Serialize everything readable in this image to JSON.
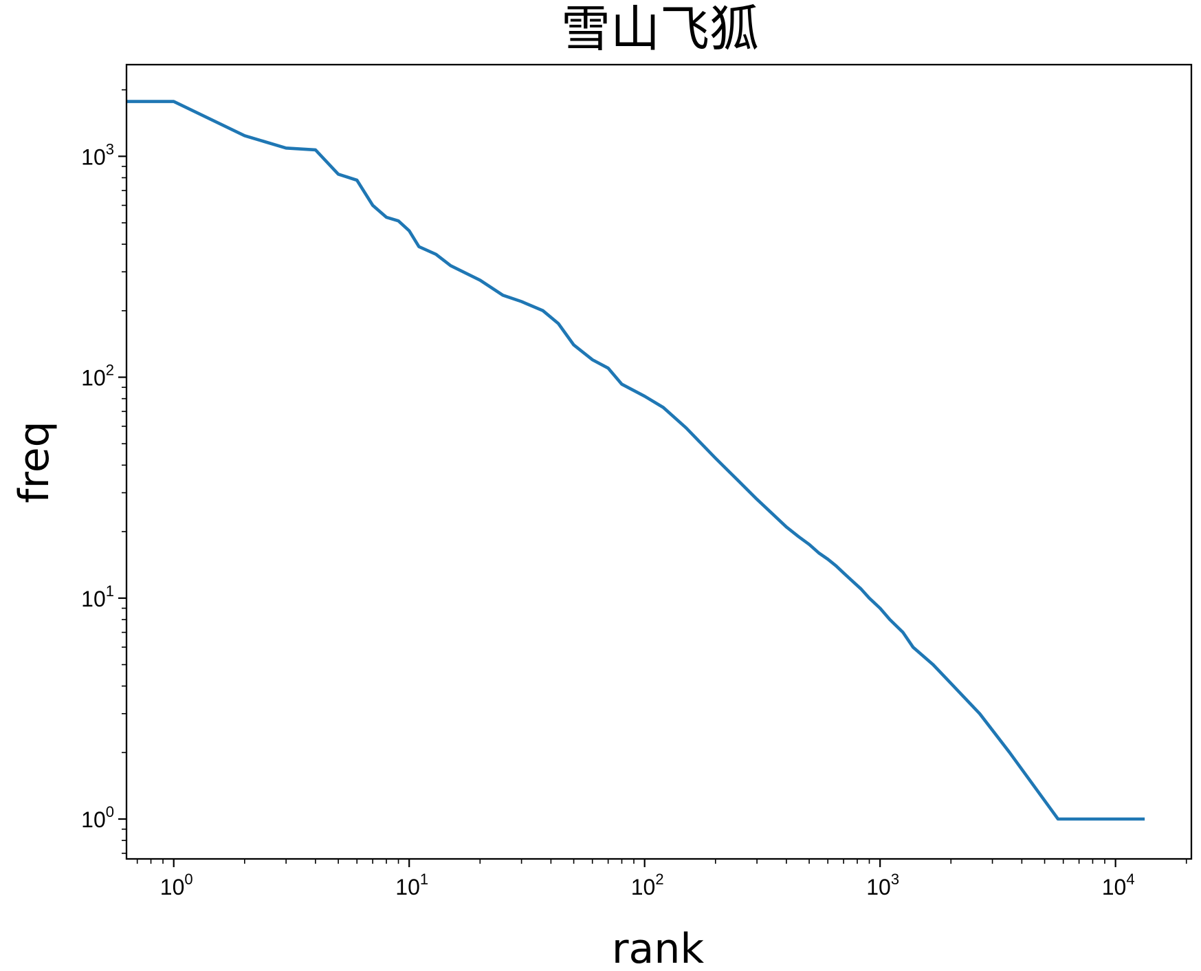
{
  "chart_data": {
    "type": "line",
    "title": "雪山飞狐",
    "xlabel": "rank",
    "ylabel": "freq",
    "xscale": "log",
    "yscale": "log",
    "xlim": [
      0.63,
      21000
    ],
    "ylim": [
      0.66,
      2600
    ],
    "grid": false,
    "legend": "none",
    "line_color": "#1f77b4",
    "x_ticks": [
      {
        "base": "10",
        "exp": "0",
        "value": 1
      },
      {
        "base": "10",
        "exp": "1",
        "value": 10
      },
      {
        "base": "10",
        "exp": "2",
        "value": 100
      },
      {
        "base": "10",
        "exp": "3",
        "value": 1000
      },
      {
        "base": "10",
        "exp": "4",
        "value": 10000
      }
    ],
    "y_ticks": [
      {
        "base": "10",
        "exp": "0",
        "value": 1
      },
      {
        "base": "10",
        "exp": "1",
        "value": 10
      },
      {
        "base": "10",
        "exp": "2",
        "value": 100
      },
      {
        "base": "10",
        "exp": "3",
        "value": 1000
      }
    ],
    "series": [
      {
        "points": [
          [
            0.63,
            1770
          ],
          [
            1,
            1770
          ],
          [
            2,
            1240
          ],
          [
            3,
            1090
          ],
          [
            4,
            1070
          ],
          [
            5,
            830
          ],
          [
            6,
            780
          ],
          [
            7,
            600
          ],
          [
            8,
            530
          ],
          [
            9,
            510
          ],
          [
            10,
            460
          ],
          [
            11,
            390
          ],
          [
            13,
            360
          ],
          [
            15,
            320
          ],
          [
            20,
            275
          ],
          [
            25,
            235
          ],
          [
            30,
            220
          ],
          [
            37,
            200
          ],
          [
            43,
            175
          ],
          [
            50,
            140
          ],
          [
            60,
            120
          ],
          [
            70,
            110
          ],
          [
            80,
            93
          ],
          [
            100,
            82
          ],
          [
            120,
            73
          ],
          [
            150,
            59
          ],
          [
            200,
            43
          ],
          [
            250,
            34
          ],
          [
            300,
            28
          ],
          [
            350,
            24
          ],
          [
            400,
            21
          ],
          [
            450,
            19
          ],
          [
            500,
            17.5
          ],
          [
            550,
            16
          ],
          [
            600,
            15
          ],
          [
            650,
            14
          ],
          [
            700,
            13
          ],
          [
            760,
            12
          ],
          [
            830,
            11
          ],
          [
            900,
            10
          ],
          [
            1000,
            9
          ],
          [
            1100,
            8
          ],
          [
            1250,
            7
          ],
          [
            1380,
            6
          ],
          [
            1680,
            5
          ],
          [
            2050,
            4
          ],
          [
            2650,
            3
          ],
          [
            3550,
            2
          ],
          [
            5700,
            1
          ],
          [
            13300,
            1
          ]
        ]
      }
    ]
  }
}
